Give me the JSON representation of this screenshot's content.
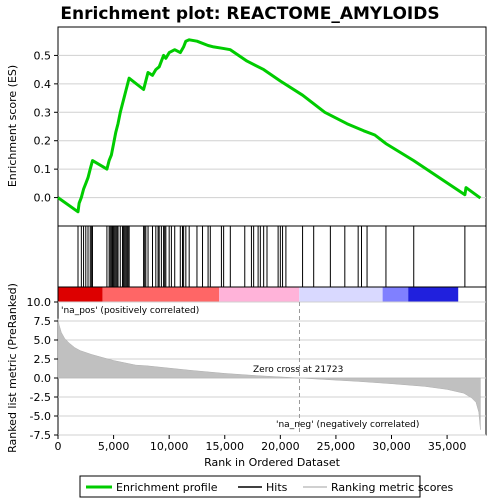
{
  "chart_data": [
    {
      "type": "line",
      "title": "Enrichment plot: REACTOME_AMYLOIDS",
      "ylabel": "Enrichment score (ES)",
      "xlim": [
        0,
        38500
      ],
      "ylim": [
        -0.1,
        0.6
      ],
      "y_ticks": [
        "0.0",
        "0.1",
        "0.2",
        "0.3",
        "0.4",
        "0.5"
      ],
      "grid": true,
      "series": [
        {
          "name": "Enrichment profile",
          "color": "#00cc00",
          "x": [
            0,
            1800,
            1900,
            2100,
            2300,
            2500,
            2700,
            2900,
            3100,
            4400,
            4600,
            4800,
            5000,
            5200,
            5400,
            5600,
            5800,
            6000,
            6200,
            6400,
            7700,
            7900,
            8100,
            8500,
            8800,
            9100,
            9300,
            9500,
            9700,
            10000,
            10500,
            11000,
            11300,
            11500,
            11800,
            12500,
            13500,
            14000,
            14800,
            15500,
            17000,
            18500,
            20000,
            22000,
            24000,
            26000,
            27500,
            28500,
            29500,
            32000,
            36600,
            36700,
            38000
          ],
          "y": [
            0.0,
            -0.05,
            -0.02,
            0.0,
            0.03,
            0.05,
            0.07,
            0.1,
            0.13,
            0.1,
            0.13,
            0.15,
            0.19,
            0.23,
            0.26,
            0.3,
            0.33,
            0.36,
            0.39,
            0.42,
            0.38,
            0.41,
            0.44,
            0.43,
            0.45,
            0.46,
            0.48,
            0.5,
            0.49,
            0.51,
            0.52,
            0.51,
            0.53,
            0.55,
            0.555,
            0.55,
            0.535,
            0.53,
            0.525,
            0.52,
            0.48,
            0.45,
            0.41,
            0.36,
            0.3,
            0.26,
            0.235,
            0.22,
            0.19,
            0.13,
            0.01,
            0.035,
            -0.002
          ]
        }
      ]
    },
    {
      "type": "hits",
      "legend_label": "Hits",
      "hit_positions": [
        1800,
        2100,
        2300,
        2500,
        2700,
        2900,
        3000,
        3100,
        4400,
        4600,
        4700,
        4800,
        4900,
        5000,
        5100,
        5200,
        5300,
        5400,
        5600,
        5800,
        5900,
        6000,
        6100,
        6200,
        6300,
        6400,
        7700,
        7800,
        7900,
        8100,
        8500,
        8800,
        9000,
        9100,
        9300,
        9500,
        9600,
        9700,
        10000,
        10200,
        10500,
        11000,
        11200,
        11300,
        11500,
        11800,
        12500,
        13000,
        13500,
        13700,
        14700,
        14900,
        15500,
        16800,
        17400,
        17600,
        18000,
        18200,
        18500,
        18800,
        19800,
        20000,
        20200,
        20500,
        22000,
        23000,
        24500,
        25800,
        27000,
        27300,
        27800,
        29500,
        32000,
        36600
      ]
    },
    {
      "type": "heatmap",
      "colors": [
        "#dd0000",
        "#ff6666",
        "#ffb3d9",
        "#d9d9ff",
        "#8080ff",
        "#2020dd"
      ],
      "breaks": [
        0,
        4000,
        14500,
        21700,
        29200,
        31500,
        36000,
        38000
      ]
    },
    {
      "type": "area",
      "ylabel": "Ranked list metric (PreRanked)",
      "xlabel": "Rank in Ordered Dataset",
      "xlim": [
        0,
        38500
      ],
      "ylim": [
        -7.5,
        10.0
      ],
      "x_ticks": [
        "0",
        "5,000",
        "10,000",
        "15,000",
        "20,000",
        "25,000",
        "30,000",
        "35,000"
      ],
      "y_ticks": [
        "10.0",
        "7.5",
        "5.0",
        "2.5",
        "0.0",
        "-2.5",
        "-5.0",
        "-7.5"
      ],
      "series": [
        {
          "name": "Ranking metric scores",
          "color": "#c0c0c0",
          "x": [
            0,
            100,
            300,
            600,
            1000,
            1500,
            2000,
            3000,
            4000,
            5000,
            6000,
            7000,
            8000,
            10000,
            12000,
            15000,
            18000,
            20000,
            21723,
            24000,
            27000,
            30000,
            33000,
            35000,
            36500,
            37200,
            37600,
            37850,
            38000
          ],
          "y": [
            7.8,
            7.0,
            6.0,
            5.2,
            4.6,
            4.0,
            3.6,
            3.1,
            2.7,
            2.3,
            2.0,
            1.7,
            1.6,
            1.3,
            1.0,
            0.6,
            0.3,
            0.15,
            0.0,
            -0.2,
            -0.45,
            -0.75,
            -1.1,
            -1.5,
            -2.0,
            -2.6,
            -3.2,
            -4.5,
            -6.8
          ]
        }
      ],
      "annotations": {
        "pos_label": "'na_pos' (positively correlated)",
        "neg_label": "'na_neg' (negatively correlated)",
        "zero_cross_label": "Zero cross at 21723",
        "zero_cross": 21723
      }
    }
  ],
  "legend": {
    "items": [
      {
        "label": "Enrichment profile",
        "color": "#00cc00",
        "kind": "thick-line"
      },
      {
        "label": "Hits",
        "color": "#000000",
        "kind": "line"
      },
      {
        "label": "Ranking metric scores",
        "color": "#c0c0c0",
        "kind": "line"
      }
    ]
  }
}
